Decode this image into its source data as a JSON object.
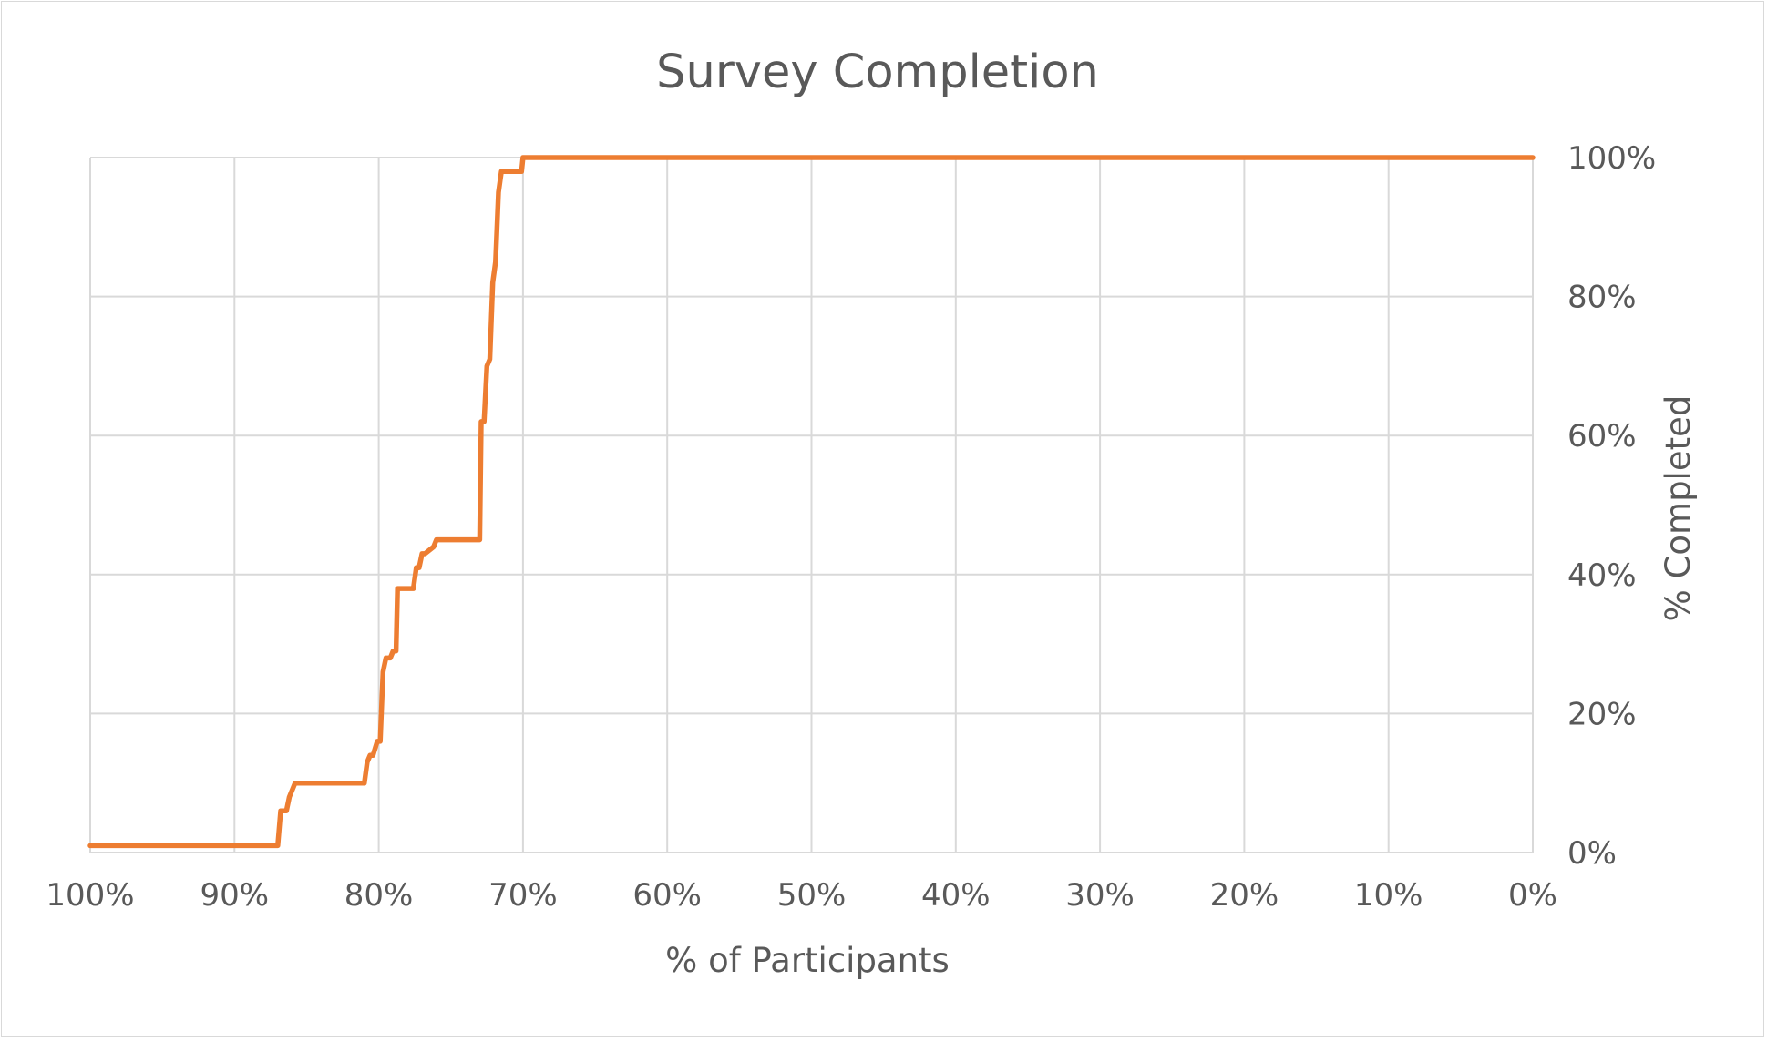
{
  "chart_data": {
    "type": "line",
    "title": "Survey Completion",
    "xlabel": "% of Participants",
    "ylabel": "% Completed",
    "xlim": [
      100,
      0
    ],
    "ylim": [
      0,
      100
    ],
    "x_reversed": true,
    "y_axis_side": "right",
    "grid": true,
    "legend": "none",
    "x_ticks": [
      100,
      90,
      80,
      70,
      60,
      50,
      40,
      30,
      20,
      10,
      0
    ],
    "x_tick_labels": [
      "100%",
      "90%",
      "80%",
      "70%",
      "60%",
      "50%",
      "40%",
      "30%",
      "20%",
      "10%",
      "0%"
    ],
    "y_ticks": [
      0,
      20,
      40,
      60,
      80,
      100
    ],
    "y_tick_labels": [
      "0%",
      "20%",
      "40%",
      "60%",
      "80%",
      "100%"
    ],
    "colors": {
      "line": "#ED7D31",
      "grid": "#D9D9D9",
      "text": "#595959"
    },
    "series": [
      {
        "x": [
          100,
          87.0,
          86.8,
          86.4,
          86.2,
          85.8,
          81.0,
          80.8,
          80.6,
          80.4,
          80.1,
          79.9,
          79.7,
          79.5,
          79.2,
          79.0,
          78.8,
          78.7,
          78.5,
          78.2,
          77.6,
          77.4,
          77.2,
          77.0,
          76.8,
          76.2,
          76.0,
          73.0,
          72.9,
          72.7,
          72.5,
          72.3,
          72.1,
          71.9,
          71.7,
          71.5,
          71.3,
          71.1,
          70.1,
          70.0,
          0
        ],
        "y": [
          1,
          1,
          6,
          6,
          8,
          10,
          10,
          13,
          14,
          14,
          16,
          16,
          26,
          28,
          28,
          29,
          29,
          38,
          38,
          38,
          38,
          41,
          41,
          43,
          43,
          44,
          45,
          45,
          62,
          62,
          70,
          71,
          82,
          85,
          95,
          98,
          98,
          98,
          98,
          100,
          100
        ]
      }
    ]
  }
}
